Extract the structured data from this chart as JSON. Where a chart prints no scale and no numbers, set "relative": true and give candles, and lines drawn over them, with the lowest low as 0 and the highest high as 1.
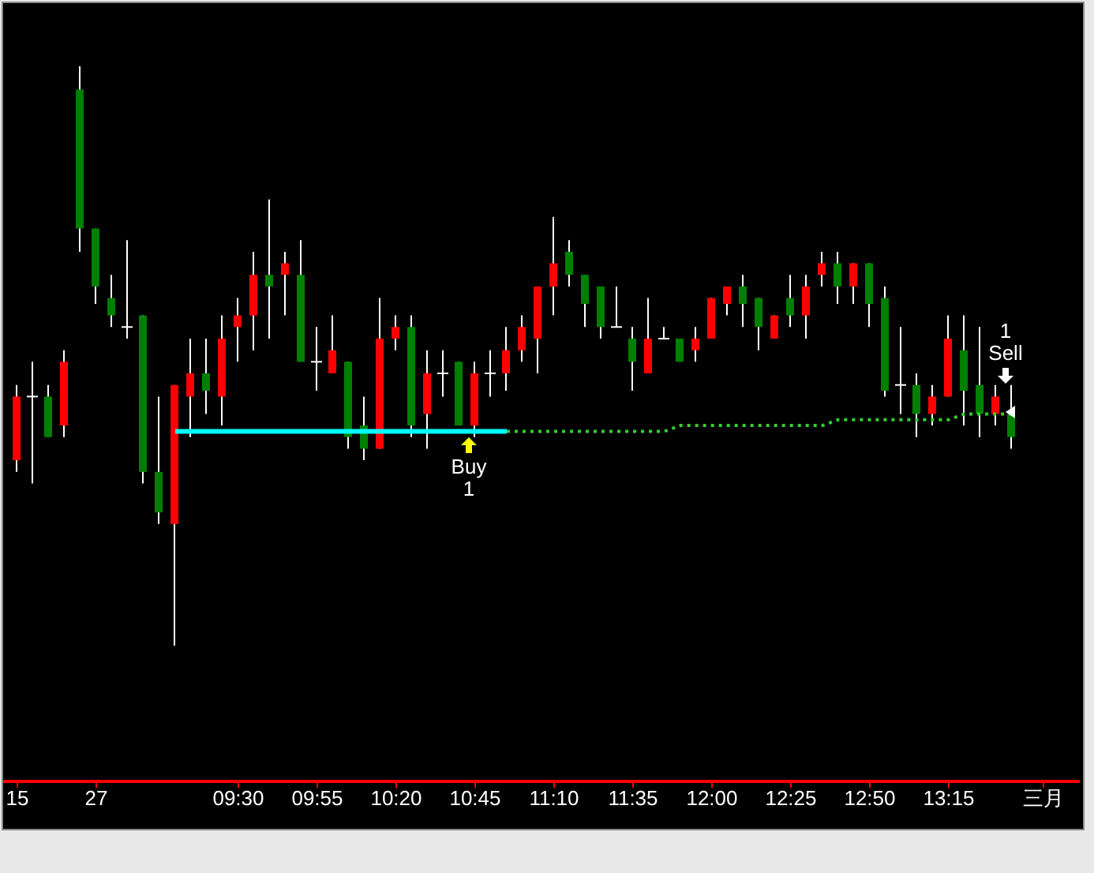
{
  "chart_data": {
    "type": "candlestick",
    "relative": true,
    "categories": [
      "15",
      null,
      null,
      null,
      null,
      "27",
      null,
      null,
      null,
      null,
      null,
      null,
      null,
      null,
      "09:30",
      null,
      null,
      null,
      null,
      "09:55",
      null,
      null,
      null,
      null,
      "10:20",
      null,
      null,
      null,
      null,
      "10:45",
      null,
      null,
      null,
      null,
      "11:10",
      null,
      null,
      null,
      null,
      "11:35",
      null,
      null,
      null,
      null,
      "12:00",
      null,
      null,
      null,
      null,
      "12:25",
      null,
      null,
      null,
      null,
      "12:50",
      null,
      null,
      null,
      null,
      "13:15",
      null,
      null,
      null,
      null,
      null,
      "三月"
    ],
    "ohlc": [
      [
        0.32,
        0.45,
        0.3,
        0.43
      ],
      [
        0.43,
        0.49,
        0.28,
        0.43
      ],
      [
        0.43,
        0.45,
        0.36,
        0.36
      ],
      [
        0.38,
        0.51,
        0.36,
        0.49
      ],
      [
        0.96,
        1.0,
        0.68,
        0.72
      ],
      [
        0.72,
        0.72,
        0.59,
        0.62
      ],
      [
        0.6,
        0.64,
        0.55,
        0.57
      ],
      [
        0.55,
        0.7,
        0.53,
        0.55
      ],
      [
        0.57,
        0.57,
        0.28,
        0.3
      ],
      [
        0.3,
        0.43,
        0.21,
        0.23
      ],
      [
        0.21,
        0.45,
        0.0,
        0.45
      ],
      [
        0.43,
        0.53,
        0.36,
        0.47
      ],
      [
        0.47,
        0.53,
        0.4,
        0.44
      ],
      [
        0.43,
        0.57,
        0.38,
        0.53
      ],
      [
        0.55,
        0.6,
        0.49,
        0.57
      ],
      [
        0.57,
        0.68,
        0.51,
        0.64
      ],
      [
        0.64,
        0.77,
        0.53,
        0.62
      ],
      [
        0.64,
        0.68,
        0.57,
        0.66
      ],
      [
        0.64,
        0.7,
        0.49,
        0.49
      ],
      [
        0.49,
        0.55,
        0.44,
        0.49
      ],
      [
        0.47,
        0.57,
        0.47,
        0.51
      ],
      [
        0.49,
        0.49,
        0.34,
        0.36
      ],
      [
        0.38,
        0.43,
        0.32,
        0.34
      ],
      [
        0.34,
        0.6,
        0.34,
        0.53
      ],
      [
        0.53,
        0.57,
        0.51,
        0.55
      ],
      [
        0.55,
        0.57,
        0.36,
        0.38
      ],
      [
        0.4,
        0.51,
        0.34,
        0.47
      ],
      [
        0.47,
        0.51,
        0.43,
        0.47
      ],
      [
        0.49,
        0.49,
        0.38,
        0.38
      ],
      [
        0.38,
        0.49,
        0.36,
        0.47
      ],
      [
        0.47,
        0.51,
        0.43,
        0.47
      ],
      [
        0.47,
        0.55,
        0.44,
        0.51
      ],
      [
        0.51,
        0.57,
        0.49,
        0.55
      ],
      [
        0.53,
        0.62,
        0.47,
        0.62
      ],
      [
        0.62,
        0.74,
        0.57,
        0.66
      ],
      [
        0.68,
        0.7,
        0.62,
        0.64
      ],
      [
        0.64,
        0.64,
        0.55,
        0.59
      ],
      [
        0.62,
        0.62,
        0.53,
        0.55
      ],
      [
        0.55,
        0.62,
        0.55,
        0.55
      ],
      [
        0.53,
        0.55,
        0.44,
        0.49
      ],
      [
        0.47,
        0.6,
        0.47,
        0.53
      ],
      [
        0.53,
        0.55,
        0.53,
        0.53
      ],
      [
        0.53,
        0.53,
        0.49,
        0.49
      ],
      [
        0.51,
        0.55,
        0.49,
        0.53
      ],
      [
        0.53,
        0.6,
        0.53,
        0.6
      ],
      [
        0.59,
        0.62,
        0.57,
        0.62
      ],
      [
        0.62,
        0.64,
        0.55,
        0.59
      ],
      [
        0.6,
        0.6,
        0.51,
        0.55
      ],
      [
        0.53,
        0.57,
        0.53,
        0.57
      ],
      [
        0.6,
        0.64,
        0.55,
        0.57
      ],
      [
        0.57,
        0.64,
        0.53,
        0.62
      ],
      [
        0.64,
        0.68,
        0.62,
        0.66
      ],
      [
        0.66,
        0.68,
        0.59,
        0.62
      ],
      [
        0.62,
        0.66,
        0.59,
        0.66
      ],
      [
        0.66,
        0.66,
        0.55,
        0.59
      ],
      [
        0.6,
        0.62,
        0.43,
        0.44
      ],
      [
        0.45,
        0.55,
        0.4,
        0.45
      ],
      [
        0.45,
        0.47,
        0.36,
        0.4
      ],
      [
        0.4,
        0.45,
        0.38,
        0.43
      ],
      [
        0.43,
        0.57,
        0.43,
        0.53
      ],
      [
        0.51,
        0.57,
        0.38,
        0.44
      ],
      [
        0.45,
        0.55,
        0.36,
        0.4
      ],
      [
        0.4,
        0.45,
        0.38,
        0.43
      ],
      [
        0.4,
        0.45,
        0.34,
        0.36
      ],
      null,
      null
    ],
    "colors": [
      "#ff0000",
      "#ffffff",
      "#008000",
      "#ff0000",
      "#008000",
      "#008000",
      "#008000",
      "#ffffff",
      "#008000",
      "#008000",
      "#ff0000",
      "#ff0000",
      "#008000",
      "#ff0000",
      "#ff0000",
      "#ff0000",
      "#008000",
      "#ff0000",
      "#008000",
      "#ffffff",
      "#ff0000",
      "#008000",
      "#008000",
      "#ff0000",
      "#ff0000",
      "#008000",
      "#ff0000",
      "#ffffff",
      "#008000",
      "#ff0000",
      "#ffffff",
      "#ff0000",
      "#ff0000",
      "#ff0000",
      "#ff0000",
      "#008000",
      "#008000",
      "#008000",
      "#ffffff",
      "#008000",
      "#ff0000",
      "#ffffff",
      "#008000",
      "#ff0000",
      "#ff0000",
      "#ff0000",
      "#008000",
      "#008000",
      "#ff0000",
      "#008000",
      "#ff0000",
      "#ff0000",
      "#008000",
      "#ff0000",
      "#008000",
      "#008000",
      "#ffffff",
      "#008000",
      "#ff0000",
      "#ff0000",
      "#008000",
      "#008000",
      "#ff0000",
      "#008000",
      null,
      null
    ],
    "series": [
      {
        "type": "line",
        "color": "#00ffff",
        "line_style": "solid",
        "values": [
          null,
          null,
          null,
          null,
          null,
          null,
          null,
          null,
          null,
          null,
          0.37,
          0.37,
          0.37,
          0.37,
          0.37,
          0.37,
          0.37,
          0.37,
          0.37,
          0.37,
          0.37,
          0.37,
          0.37,
          0.37,
          0.37,
          0.37,
          0.37,
          0.37,
          0.37,
          0.37,
          0.37,
          0.37,
          null,
          null,
          null,
          null,
          null,
          null,
          null,
          null,
          null,
          null,
          null,
          null,
          null,
          null,
          null,
          null,
          null,
          null,
          null,
          null,
          null,
          null,
          null,
          null,
          null,
          null,
          null,
          null,
          null,
          null,
          null,
          null,
          null,
          null
        ]
      },
      {
        "type": "line",
        "color": "#33cc33",
        "line_style": "dotted",
        "values": [
          null,
          null,
          null,
          null,
          null,
          null,
          null,
          null,
          null,
          null,
          null,
          null,
          null,
          null,
          null,
          null,
          null,
          null,
          null,
          null,
          null,
          null,
          null,
          null,
          null,
          null,
          null,
          null,
          null,
          null,
          null,
          0.37,
          0.37,
          0.37,
          0.37,
          0.37,
          0.37,
          0.37,
          0.37,
          0.37,
          0.37,
          0.37,
          0.38,
          0.38,
          0.38,
          0.38,
          0.38,
          0.38,
          0.38,
          0.38,
          0.38,
          0.38,
          0.39,
          0.39,
          0.39,
          0.39,
          0.39,
          0.39,
          0.39,
          0.39,
          0.4,
          0.4,
          0.4,
          0.4,
          null,
          null
        ]
      }
    ],
    "annotations": [
      "Buy 1",
      "1 Sell"
    ]
  }
}
